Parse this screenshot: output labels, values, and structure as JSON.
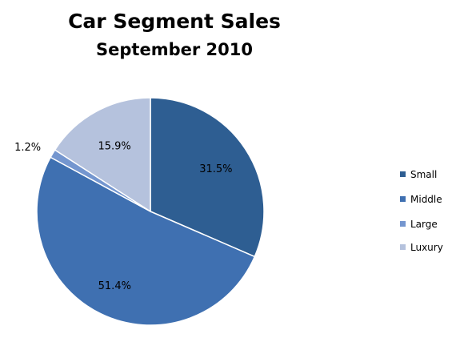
{
  "chart_data": {
    "type": "pie",
    "title": "Car Segment Sales",
    "subtitle": "September 2010",
    "categories": [
      "Small",
      "Middle",
      "Large",
      "Luxury"
    ],
    "values": [
      31.5,
      51.4,
      1.2,
      15.9
    ],
    "labels": [
      "31.5%",
      "51.4%",
      "1.2%",
      "15.9%"
    ],
    "colors": [
      "#2E5E92",
      "#3F70B1",
      "#7496CF",
      "#B5C2DD"
    ],
    "start_angle_deg": 0,
    "direction": "clockwise",
    "legend": {
      "position": "right",
      "entries": [
        "Small",
        "Middle",
        "Large",
        "Luxury"
      ]
    }
  }
}
